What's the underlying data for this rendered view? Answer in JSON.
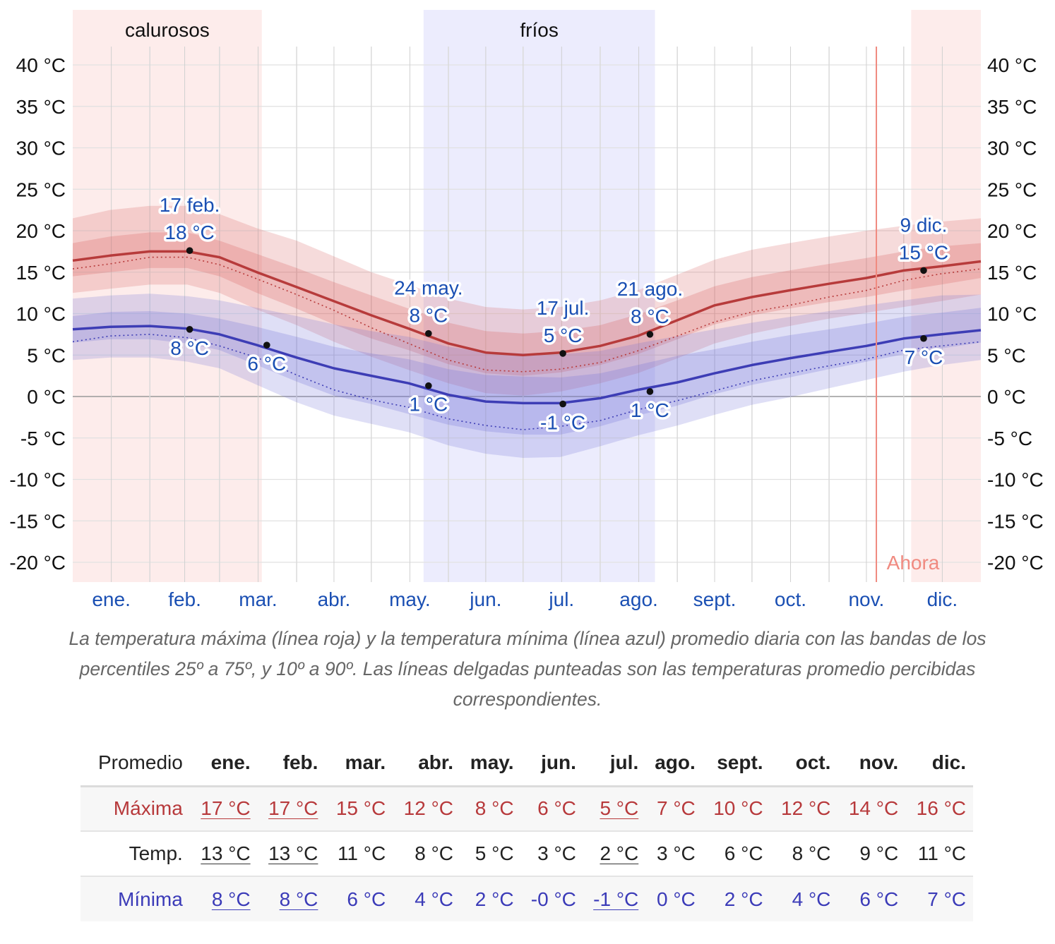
{
  "chart_data": {
    "type": "line",
    "y_ticks": [
      "40 °C",
      "35 °C",
      "30 °C",
      "25 °C",
      "20 °C",
      "15 °C",
      "10 °C",
      "5 °C",
      "0 °C",
      "-5 °C",
      "-10 °C",
      "-15 °C",
      "-20 °C"
    ],
    "ylim": [
      -22,
      43
    ],
    "months": [
      "ene.",
      "feb.",
      "mar.",
      "abr.",
      "may.",
      "jun.",
      "jul.",
      "ago.",
      "sept.",
      "oct.",
      "nov.",
      "dic."
    ],
    "seasons": [
      {
        "label": "calurosos",
        "start_day": 0,
        "end_day": 76,
        "color": "#fdeceb"
      },
      {
        "label": "",
        "start_day": 337,
        "end_day": 365,
        "color": "#fdeceb"
      },
      {
        "label": "fríos",
        "start_day": 141,
        "end_day": 234,
        "color": "#ececfd"
      }
    ],
    "now": {
      "label": "Ahora",
      "day": 323
    },
    "series": [
      {
        "key": "max",
        "color": "#b73b3b",
        "band_color": "#d65a5a",
        "days": [
          0,
          15,
          31,
          46,
          59,
          74,
          90,
          105,
          120,
          135,
          151,
          166,
          181,
          196,
          212,
          227,
          243,
          258,
          273,
          288,
          304,
          319,
          334,
          349,
          365
        ],
        "mean": [
          16.4,
          17.0,
          17.5,
          17.5,
          16.8,
          15.0,
          13.2,
          11.5,
          9.8,
          8.2,
          6.4,
          5.3,
          5.0,
          5.3,
          6.1,
          7.3,
          9.2,
          11.0,
          12.0,
          12.8,
          13.6,
          14.3,
          15.2,
          15.7,
          16.3
        ],
        "feels": [
          15.4,
          16.0,
          16.8,
          16.8,
          15.9,
          14.2,
          12.3,
          10.4,
          8.3,
          6.4,
          4.4,
          3.2,
          3.0,
          3.3,
          4.1,
          5.5,
          7.3,
          9.0,
          10.2,
          11.0,
          12.0,
          12.8,
          14.0,
          14.8,
          15.4
        ],
        "p25": [
          14.5,
          15.0,
          15.5,
          15.5,
          14.5,
          12.5,
          10.6,
          8.7,
          7.0,
          5.6,
          3.9,
          2.8,
          2.5,
          2.9,
          3.8,
          5.1,
          6.9,
          8.7,
          9.8,
          10.6,
          11.4,
          12.0,
          12.8,
          13.5,
          14.3
        ],
        "p75": [
          18.5,
          19.3,
          19.8,
          19.8,
          18.8,
          17.2,
          15.5,
          13.8,
          12.2,
          10.6,
          8.9,
          7.9,
          7.6,
          7.9,
          8.6,
          9.9,
          11.6,
          13.3,
          14.4,
          15.2,
          16.0,
          16.7,
          17.5,
          18.1,
          18.5
        ],
        "p10": [
          12.5,
          13.0,
          13.5,
          13.5,
          12.5,
          10.5,
          8.6,
          6.6,
          4.8,
          3.2,
          1.6,
          0.4,
          0.1,
          0.6,
          1.6,
          2.8,
          4.6,
          6.4,
          7.6,
          8.5,
          9.4,
          10.1,
          10.8,
          11.5,
          12.3
        ],
        "p90": [
          21.5,
          22.5,
          23.0,
          23.0,
          22.0,
          20.3,
          18.8,
          16.9,
          15.0,
          13.5,
          11.8,
          10.8,
          10.5,
          10.8,
          11.6,
          12.8,
          14.7,
          16.5,
          17.7,
          18.5,
          19.3,
          20.0,
          20.6,
          21.1,
          21.5
        ]
      },
      {
        "key": "min",
        "color": "#3d3db5",
        "band_color": "#6e6ed6",
        "days": [
          0,
          15,
          31,
          46,
          59,
          74,
          90,
          105,
          120,
          135,
          151,
          166,
          181,
          196,
          212,
          227,
          243,
          258,
          273,
          288,
          304,
          319,
          334,
          349,
          365
        ],
        "mean": [
          8.1,
          8.4,
          8.5,
          8.2,
          7.5,
          6.2,
          4.7,
          3.4,
          2.5,
          1.6,
          0.2,
          -0.6,
          -0.8,
          -0.8,
          -0.2,
          0.8,
          1.7,
          2.8,
          3.8,
          4.6,
          5.4,
          6.1,
          7.0,
          7.5,
          8.0
        ],
        "feels": [
          6.6,
          7.3,
          7.5,
          7.1,
          6.1,
          4.7,
          2.6,
          0.8,
          -0.4,
          -1.3,
          -2.7,
          -3.5,
          -4.0,
          -3.6,
          -2.9,
          -1.6,
          -0.5,
          0.7,
          1.9,
          2.8,
          3.7,
          4.5,
          5.6,
          6.1,
          6.6
        ],
        "p25": [
          6.5,
          6.9,
          6.9,
          6.4,
          5.6,
          3.8,
          1.8,
          0.1,
          -0.9,
          -2.1,
          -3.4,
          -4.2,
          -4.6,
          -4.6,
          -3.6,
          -2.3,
          -1.1,
          0.3,
          1.4,
          2.3,
          3.3,
          4.2,
          5.1,
          5.8,
          6.5
        ],
        "p75": [
          9.7,
          10.2,
          10.3,
          10.0,
          9.4,
          8.4,
          7.2,
          6.0,
          5.2,
          4.5,
          3.3,
          2.6,
          2.4,
          2.3,
          2.8,
          3.8,
          4.9,
          5.7,
          6.6,
          7.4,
          8.1,
          8.8,
          9.6,
          10.1,
          10.7
        ],
        "p10": [
          4.4,
          4.7,
          4.7,
          4.2,
          3.4,
          1.4,
          -0.7,
          -2.3,
          -3.3,
          -4.3,
          -5.9,
          -6.9,
          -7.4,
          -7.3,
          -6.0,
          -4.7,
          -3.5,
          -2.2,
          -1.0,
          -0.1,
          1.0,
          2.0,
          3.0,
          3.8,
          4.4
        ],
        "p90": [
          11.8,
          12.2,
          12.4,
          12.1,
          11.6,
          10.7,
          9.7,
          8.7,
          7.9,
          7.2,
          6.0,
          5.4,
          5.2,
          5.1,
          5.5,
          6.4,
          7.3,
          8.1,
          8.9,
          9.6,
          10.3,
          11.0,
          11.6,
          12.2,
          12.3
        ]
      }
    ],
    "annotations": [
      {
        "day": 47,
        "value": 17.6,
        "line1": "17 feb.",
        "line2": "18 °C",
        "pos": "above"
      },
      {
        "day": 47,
        "value": 8.1,
        "line1": "8 °C",
        "line2": "",
        "pos": "below"
      },
      {
        "day": 78,
        "value": 6.2,
        "line1": "6 °C",
        "line2": "",
        "pos": "below"
      },
      {
        "day": 143,
        "value": 7.6,
        "line1": "24 may.",
        "line2": "8 °C",
        "pos": "above"
      },
      {
        "day": 143,
        "value": 1.3,
        "line1": "1 °C",
        "line2": "",
        "pos": "below"
      },
      {
        "day": 197,
        "value": 5.2,
        "line1": "17 jul.",
        "line2": "5 °C",
        "pos": "above"
      },
      {
        "day": 197,
        "value": -0.9,
        "line1": "-1 °C",
        "line2": "",
        "pos": "below"
      },
      {
        "day": 232,
        "value": 7.5,
        "line1": "21 ago.",
        "line2": "8 °C",
        "pos": "above"
      },
      {
        "day": 232,
        "value": 0.6,
        "line1": "1 °C",
        "line2": "",
        "pos": "below"
      },
      {
        "day": 342,
        "value": 15.2,
        "line1": "9 dic.",
        "line2": "15 °C",
        "pos": "above"
      },
      {
        "day": 342,
        "value": 7.0,
        "line1": "7 °C",
        "line2": "",
        "pos": "below"
      }
    ]
  },
  "caption": "La temperatura máxima (línea roja) y la temperatura mínima (línea azul) promedio diaria con las bandas de los percentiles 25º a 75º, y 10º a 90º. Las líneas delgadas punteadas son las temperaturas promedio percibidas correspondientes.",
  "table": {
    "header": "Promedio",
    "months": [
      "ene.",
      "feb.",
      "mar.",
      "abr.",
      "may.",
      "jun.",
      "jul.",
      "ago.",
      "sept.",
      "oct.",
      "nov.",
      "dic."
    ],
    "rows": [
      {
        "label": "Máxima",
        "values": [
          "17 °C",
          "17 °C",
          "15 °C",
          "12 °C",
          "8 °C",
          "6 °C",
          "5 °C",
          "7 °C",
          "10 °C",
          "12 °C",
          "14 °C",
          "16 °C"
        ]
      },
      {
        "label": "Temp.",
        "values": [
          "13 °C",
          "13 °C",
          "11 °C",
          "8 °C",
          "5 °C",
          "3 °C",
          "2 °C",
          "3 °C",
          "6 °C",
          "8 °C",
          "9 °C",
          "11 °C"
        ]
      },
      {
        "label": "Mínima",
        "values": [
          "8 °C",
          "8 °C",
          "6 °C",
          "4 °C",
          "2 °C",
          "-0 °C",
          "-1 °C",
          "0 °C",
          "2 °C",
          "4 °C",
          "6 °C",
          "7 °C"
        ]
      }
    ]
  }
}
